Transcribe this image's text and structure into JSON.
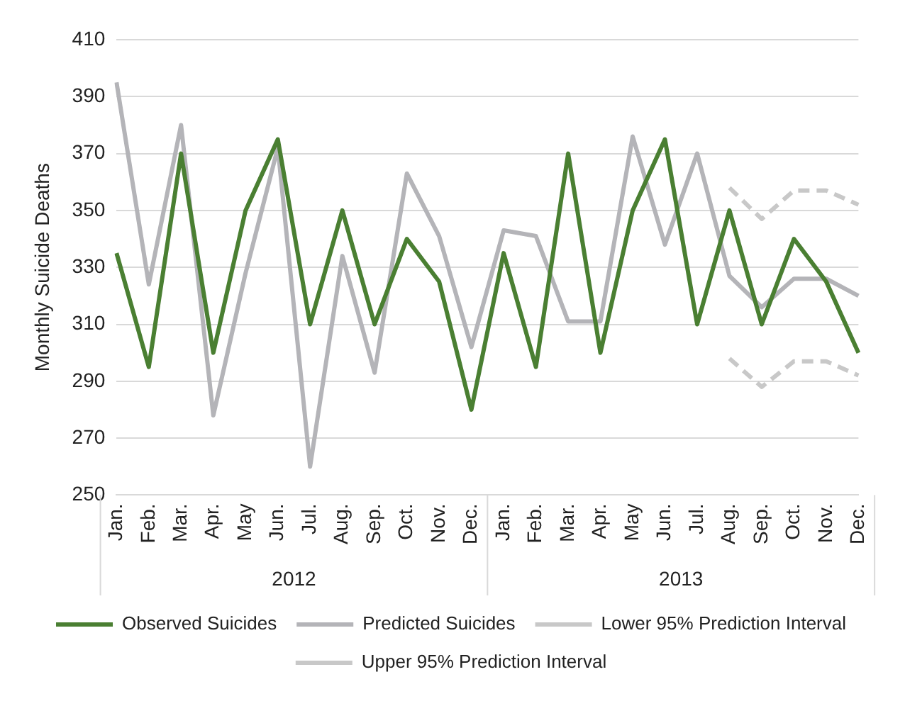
{
  "chart_data": {
    "type": "line",
    "ylabel": "Monthly Suicide Deaths",
    "categories": [
      "Jan.",
      "Feb.",
      "Mar.",
      "Apr.",
      "May",
      "Jun.",
      "Jul.",
      "Aug.",
      "Sep.",
      "Oct.",
      "Nov.",
      "Dec.",
      "Jan.",
      "Feb.",
      "Mar.",
      "Apr.",
      "May",
      "Jun.",
      "Jul.",
      "Aug.",
      "Sep.",
      "Oct.",
      "Nov.",
      "Dec."
    ],
    "annotations": [
      "2012",
      "2013"
    ],
    "series": [
      {
        "name": "Observed Suicides",
        "color": "#4a7f32",
        "line_style": "solid",
        "values": [
          335,
          295,
          370,
          300,
          350,
          375,
          310,
          350,
          310,
          340,
          325,
          280,
          335,
          295,
          370,
          300,
          350,
          375,
          310,
          350,
          310,
          340,
          325,
          300
        ]
      },
      {
        "name": "Predicted Suicides",
        "color": "#b4b4b8",
        "line_style": "solid",
        "values": [
          395,
          324,
          380,
          278,
          328,
          372,
          260,
          334,
          293,
          363,
          341,
          302,
          343,
          341,
          311,
          311,
          376,
          338,
          370,
          327,
          316,
          326,
          326,
          320
        ]
      },
      {
        "name": "Lower 95% Prediction Interval",
        "color": "#c8c8c8",
        "line_style": "dashed",
        "values": [
          null,
          null,
          null,
          null,
          null,
          null,
          null,
          null,
          null,
          null,
          null,
          null,
          null,
          null,
          null,
          null,
          null,
          null,
          null,
          298,
          288,
          297,
          297,
          292
        ]
      },
      {
        "name": "Upper 95% Prediction Interval",
        "color": "#c8c8c8",
        "line_style": "dashed",
        "values": [
          null,
          null,
          null,
          null,
          null,
          null,
          null,
          null,
          null,
          null,
          null,
          null,
          null,
          null,
          null,
          null,
          null,
          null,
          null,
          358,
          347,
          357,
          357,
          352
        ]
      }
    ],
    "ylim": [
      250,
      410
    ],
    "yticks": [
      250,
      270,
      290,
      310,
      330,
      350,
      370,
      390,
      410
    ],
    "grid": "y",
    "legend": "bottom",
    "marker": "none"
  }
}
